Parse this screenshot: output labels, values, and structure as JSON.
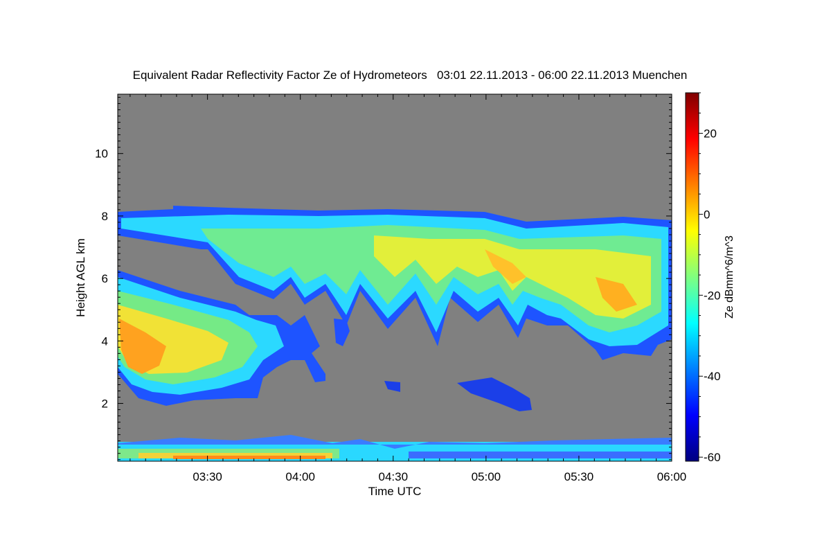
{
  "chart_data": {
    "type": "heatmap",
    "title": "Equivalent Radar Reflectivity Factor Ze of Hydrometeors   03:01 22.11.2013 - 06:00 22.11.2013 Muenchen",
    "xlabel": "Time UTC",
    "ylabel": "Height AGL km",
    "xlim": [
      "03:01",
      "06:00"
    ],
    "ylim": [
      0.15,
      11.9
    ],
    "x_ticks": [
      "03:30",
      "04:00",
      "04:30",
      "05:00",
      "05:30",
      "06:00"
    ],
    "y_ticks": [
      2,
      4,
      6,
      8,
      10
    ],
    "background_color": "#808080",
    "colorbar": {
      "label": "Ze dBmm^6/m^3",
      "range": [
        -61,
        30
      ],
      "ticks": [
        20,
        0,
        -20,
        -40,
        -60
      ],
      "colormap": "jet"
    },
    "features": [
      {
        "name": "cirrus-layer",
        "x_range": [
          "03:01",
          "06:00"
        ],
        "top_km": 8.1,
        "base_km": 4.0,
        "peak_dbz": -5
      },
      {
        "name": "low-cloud-blob",
        "x_range": [
          "03:01",
          "03:55"
        ],
        "top_km": 5.0,
        "base_km": 2.0,
        "peak_dbz": 4
      },
      {
        "name": "boundary-layer-clutter",
        "x_range": [
          "03:01",
          "06:00"
        ],
        "top_km": 0.9,
        "base_km": 0.15,
        "peak_dbz": 0
      },
      {
        "name": "small-echo",
        "x_range": [
          "04:58",
          "05:14"
        ],
        "top_km": 2.8,
        "base_km": 1.8,
        "peak_dbz": -45
      }
    ]
  }
}
